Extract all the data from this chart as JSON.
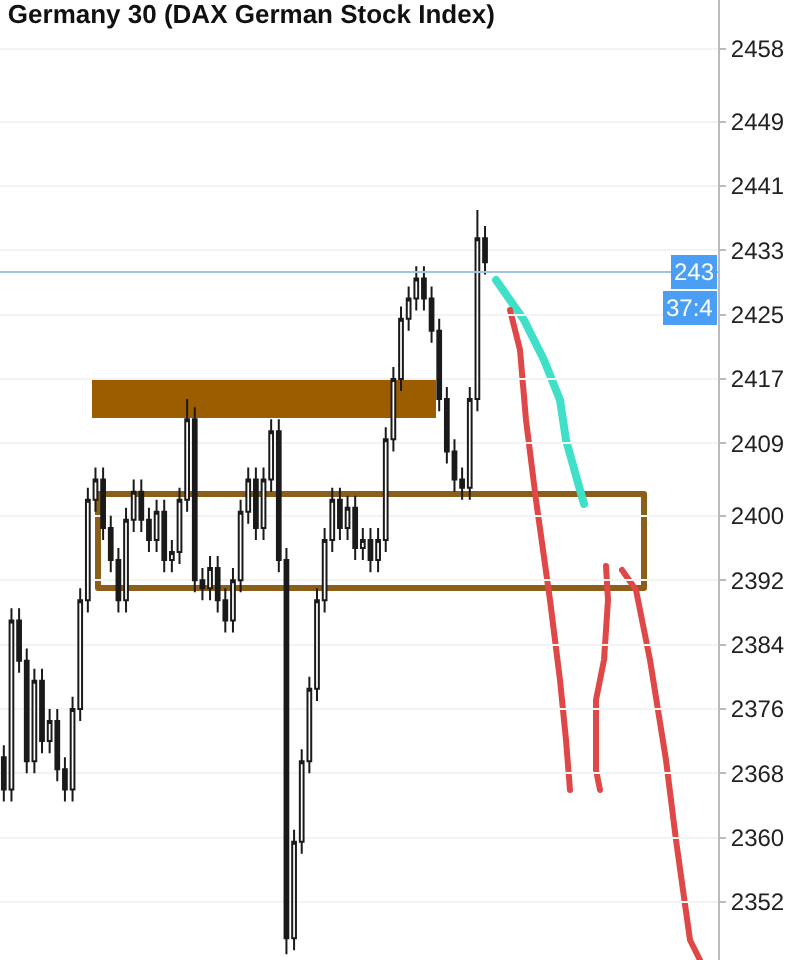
{
  "chart_data": {
    "type": "candlestick",
    "title": "Germany 30 (DAX German Stock Index)",
    "categories": [
      null,
      null,
      null,
      null,
      null,
      null,
      null,
      null,
      null,
      null,
      null,
      null,
      null,
      null,
      null,
      null,
      null,
      null,
      null,
      null,
      null,
      null,
      null,
      null,
      null,
      null,
      null,
      null,
      null,
      null,
      null,
      null,
      null,
      null,
      null,
      null,
      null,
      null,
      null,
      null,
      null,
      null,
      null,
      null,
      null,
      null,
      null,
      null,
      null,
      null,
      null,
      null,
      null,
      null,
      null,
      null,
      null,
      null,
      null,
      null,
      null,
      null,
      null,
      null,
      null,
      null,
      null,
      null,
      null,
      null,
      null,
      null,
      null,
      null,
      null,
      null,
      null,
      null,
      null,
      null,
      null,
      null,
      null,
      null,
      null,
      null,
      null,
      null,
      null,
      null,
      null,
      null,
      null,
      null
    ],
    "series": [
      {
        "color": "#1a1a1a",
        "ohlc": [
          [
            2370,
            2371.5,
            2364.5,
            2366
          ],
          [
            2366,
            2388.5,
            2364.5,
            2387
          ],
          [
            2387,
            2388.5,
            2380.5,
            2382
          ],
          [
            2382,
            2383.5,
            2368,
            2369.5
          ],
          [
            2369.5,
            2381,
            2368,
            2379.5
          ],
          [
            2379.5,
            2381,
            2370.5,
            2372
          ],
          [
            2372,
            2376,
            2370.5,
            2374.5
          ],
          [
            2374.5,
            2376,
            2367,
            2368.5
          ],
          [
            2368.5,
            2370,
            2364.5,
            2366
          ],
          [
            2366,
            2377.5,
            2364.5,
            2376
          ],
          [
            2376,
            2391,
            2374.5,
            2389.5
          ],
          [
            2389.5,
            2403.5,
            2388,
            2402
          ],
          [
            2402,
            2406,
            2400.5,
            2404.5
          ],
          [
            2404.5,
            2406,
            2397,
            2398.5
          ],
          [
            2398.5,
            2400,
            2393,
            2394.5
          ],
          [
            2394.5,
            2396,
            2388,
            2389.5
          ],
          [
            2389.5,
            2401,
            2388,
            2399.5
          ],
          [
            2399.5,
            2404.5,
            2398,
            2403
          ],
          [
            2403,
            2404.5,
            2398,
            2399.5
          ],
          [
            2399.5,
            2401,
            2395.5,
            2397
          ],
          [
            2397,
            2402,
            2395.5,
            2400.5
          ],
          [
            2400.5,
            2402,
            2393,
            2394.5
          ],
          [
            2394.5,
            2397,
            2393,
            2395.5
          ],
          [
            2395.5,
            2403.5,
            2394,
            2402
          ],
          [
            2402,
            2414.5,
            2400.5,
            2412
          ],
          [
            2412,
            2413.5,
            2390.5,
            2392
          ],
          [
            2392,
            2393.5,
            2389.5,
            2391
          ],
          [
            2391,
            2395,
            2389.5,
            2393.5
          ],
          [
            2393.5,
            2395,
            2388,
            2389.5
          ],
          [
            2389.5,
            2391,
            2385.5,
            2387
          ],
          [
            2387,
            2393.5,
            2385.5,
            2392
          ],
          [
            2392,
            2402,
            2390.5,
            2400.5
          ],
          [
            2400.5,
            2406,
            2399,
            2404.5
          ],
          [
            2404.5,
            2406,
            2397,
            2398.5
          ],
          [
            2398.5,
            2406,
            2397,
            2404.5
          ],
          [
            2404.5,
            2412,
            2403,
            2410.5
          ],
          [
            2410.5,
            2412,
            2393,
            2394.5
          ],
          [
            2394.5,
            2396,
            2345.5,
            2347.5
          ],
          [
            2347.5,
            2361,
            2346,
            2359.5
          ],
          [
            2359.5,
            2371,
            2358,
            2369.5
          ],
          [
            2369.5,
            2380,
            2368,
            2378.5
          ],
          [
            2378.5,
            2391,
            2377,
            2389.5
          ],
          [
            2389.5,
            2398.5,
            2388,
            2397
          ],
          [
            2397,
            2403.5,
            2395.5,
            2402
          ],
          [
            2402,
            2403.5,
            2397,
            2398.5
          ],
          [
            2398.5,
            2402.5,
            2397,
            2401
          ],
          [
            2401,
            2402.5,
            2394.5,
            2396
          ],
          [
            2396,
            2398.5,
            2394.5,
            2397
          ],
          [
            2397,
            2398.5,
            2393,
            2394.5
          ],
          [
            2394.5,
            2398.5,
            2393,
            2397
          ],
          [
            2397,
            2411,
            2395.5,
            2409.5
          ],
          [
            2409.5,
            2418.5,
            2408,
            2417
          ],
          [
            2417,
            2426,
            2415.5,
            2424.5
          ],
          [
            2424.5,
            2428.5,
            2423,
            2427
          ],
          [
            2427,
            2431,
            2425.5,
            2429.5
          ],
          [
            2429.5,
            2431,
            2425.5,
            2427
          ],
          [
            2427,
            2428.5,
            2421.5,
            2423
          ],
          [
            2423,
            2424.5,
            2413,
            2414.5
          ],
          [
            2414.5,
            2416,
            2406.5,
            2408
          ],
          [
            2408,
            2409.5,
            2403,
            2404.5
          ],
          [
            2404.5,
            2406,
            2402,
            2403.5
          ],
          [
            2403.5,
            2416,
            2402,
            2414.5
          ],
          [
            2414.5,
            2438,
            2413,
            2434.5
          ],
          [
            2434.5,
            2436,
            2430,
            2431.5
          ],
          null,
          null,
          null,
          null,
          null,
          null,
          null,
          null,
          null,
          null,
          null,
          null,
          null,
          null,
          null,
          null,
          null,
          null,
          null,
          null,
          null,
          null,
          null,
          null,
          null,
          null,
          null,
          null,
          null,
          null
        ]
      }
    ],
    "ylim": [
      2344.8,
      2464.1
    ],
    "yticks": [
      2458,
      2449,
      2441,
      2433,
      2425,
      2417,
      2409,
      2400,
      2392,
      2384,
      2376,
      2368,
      2360,
      2352
    ],
    "ref_lines": [
      {
        "axis": "y",
        "value": 2430.3,
        "color": "#9fc3e6"
      }
    ],
    "annotations": [
      "243",
      "37:4"
    ],
    "grid": true,
    "tick_labels": "y"
  }
}
